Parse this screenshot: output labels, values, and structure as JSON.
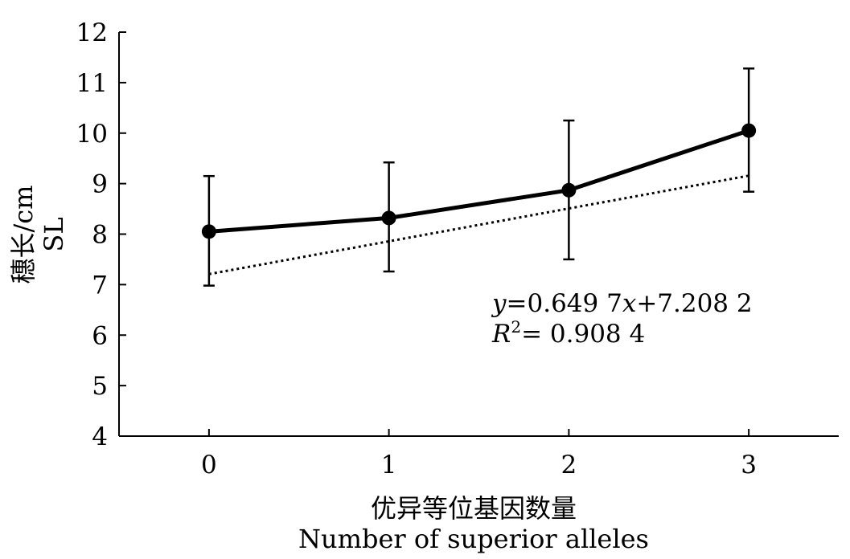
{
  "chart_data": {
    "type": "line",
    "x": [
      0,
      1,
      2,
      3
    ],
    "xlim": [
      -0.5,
      3.5
    ],
    "ylim": [
      4,
      12
    ],
    "xticks": [
      "0",
      "1",
      "2",
      "3"
    ],
    "yticks": [
      "4",
      "5",
      "6",
      "7",
      "8",
      "9",
      "10",
      "11",
      "12"
    ],
    "series": [
      {
        "values": [
          8.05,
          8.32,
          8.87,
          10.05
        ],
        "error_low": [
          6.98,
          7.26,
          7.5,
          8.84
        ],
        "error_high": [
          9.15,
          9.42,
          10.25,
          11.28
        ],
        "style": "solid",
        "marker": "circle",
        "color": "#000000"
      },
      {
        "kind": "trendline",
        "slope": 0.6497,
        "intercept": 7.2082,
        "style": "dotted",
        "color": "#000000"
      }
    ],
    "ylabel_cn": "穗长/cm",
    "ylabel_en": "SL",
    "xlabel_cn": "优异等位基因数量",
    "xlabel_en": "Number of superior alleles",
    "annotation": {
      "eq_y": "y",
      "eq_rest": "=0.649 7",
      "eq_x": "x",
      "eq_tail": "+7.208 2",
      "r2_r": "R",
      "r2_sup": "2",
      "r2_rest": "= 0.908 4"
    },
    "grid": false
  }
}
